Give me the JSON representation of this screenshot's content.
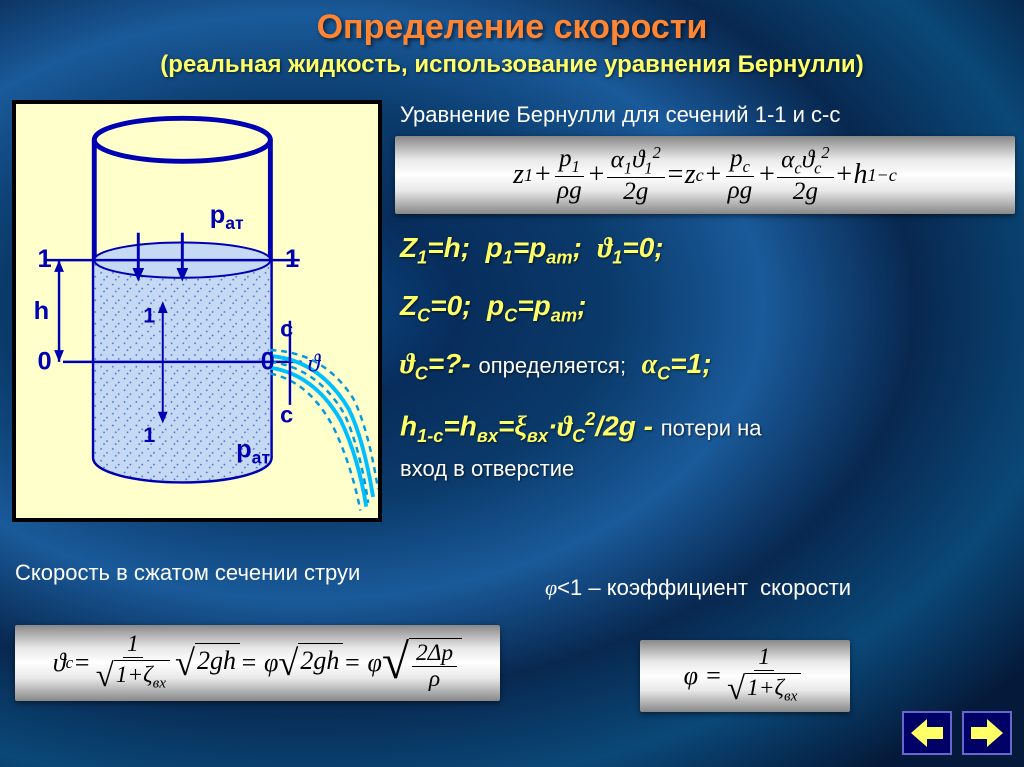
{
  "title": "Определение скорости",
  "subtitle": "(реальная жидкость, использование уравнения Бернулли)",
  "eq_label": "Уравнение Бернулли для сечений 1-1 и с-с",
  "equation_main_html": "<i>z</i><span class='sub'>1</span> + <span class='frac'><span class='num'><i>p</i><span class='sub'>1</span></span><span class='den'>&rho;<i>g</i></span></span> + <span class='frac'><span class='num'>&alpha;<span class='sub'>1</span>&#977;<span class='sub'>1</span><span class='sup'>2</span></span><span class='den'>2<i>g</i></span></span> = <i>z</i><span class='sub'>c</span> + <span class='frac'><span class='num'><i>p</i><span class='sub'>c</span></span><span class='den'>&rho;<i>g</i></span></span> + <span class='frac'><span class='num'>&alpha;<span class='sub'>c</span>&#977;<span class='sub'>c</span><span class='sup'>2</span></span><span class='den'>2<i>g</i></span></span> + <i>h</i><span class='sub'>1&minus;c</span>",
  "line1_html": "Z<span class='sub'>1</span>=h;&nbsp; p<span class='sub'>1</span>=p<span class='sub'>ат</span>;&nbsp; <span class='greek'>&#977;</span><span class='sub'>1</span>=0;",
  "line2_html": "Z<span class='sub'>C</span>=0;&nbsp; p<span class='sub'>C</span>=p<span class='sub'>ат</span>;",
  "line3_html": "<span class='greek'>&#977;</span><span class='sub'>C</span>=?- <span class='side'>определяется;</span>&nbsp; <span class='greek'>&alpha;</span><span class='sub'>C</span>=1;",
  "line4_html": "h<span class='sub'>1-c</span>=h<span class='sub'>вх</span>=<span class='greek'>&xi;</span><span class='sub'>вх</span>&middot;<span class='greek'>&#977;</span><span class='sub'>C</span><span class='sup'>2</span>/2g - <span class='side'>потери на<br>вход в отверстие</span>",
  "txt_jet": "Скорость в сжатом сечении струи",
  "txt_phi_html": "<span class='greek'>&phi;</span>&lt;1 &ndash; коэффициент&nbsp; скорости",
  "equation_theta_html": "&#977;<span class='sub'>c</span> = <span class='frac'><span class='num'>1</span><span class='den'><span class='sqrt'><span class='radical'>&radic;</span><span class='radicand'>1+&zeta;<span class='sub'>вх</span></span></span></span></span><span class='sqrt'><span class='radical'>&radic;</span><span class='radicand'>2<i>gh</i></span></span> = &phi;<span class='sqrt'><span class='radical'>&radic;</span><span class='radicand'>2<i>gh</i></span></span> = &phi;<span class='sqrt'><span class='radical' style='font-size:1.9em;vertical-align:-0.1em'>&radic;</span><span class='radicand'><span class='frac'><span class='num'>2&Delta;<i>p</i></span><span class='den'>&rho;</span></span></span></span>",
  "equation_phi_html": "&phi; = <span class='frac'><span class='num'>1</span><span class='den'><span class='sqrt'><span class='radical'>&radic;</span><span class='radicand'>1+&zeta;<span class='sub'>вх</span></span></span></span></span>",
  "diagram": {
    "labels": {
      "p_at_top": "p",
      "p_at_sub": "ат",
      "one": "1",
      "zero": "0",
      "c": "с",
      "h": "h",
      "theta": "ϑ"
    },
    "colors": {
      "bg": "#ffffcc",
      "border": "#000000",
      "tank_outline": "#0000b3",
      "water_fill": "#c5d9f5",
      "stipple": "#3a6cc8",
      "jet": "#00bfff",
      "jet_dash": "#0099dd",
      "text": "#0000b3"
    }
  },
  "nav": {
    "prev_color": "#ffff66",
    "next_color": "#ffff66",
    "bg": "#000066",
    "border": "#6666cc"
  }
}
